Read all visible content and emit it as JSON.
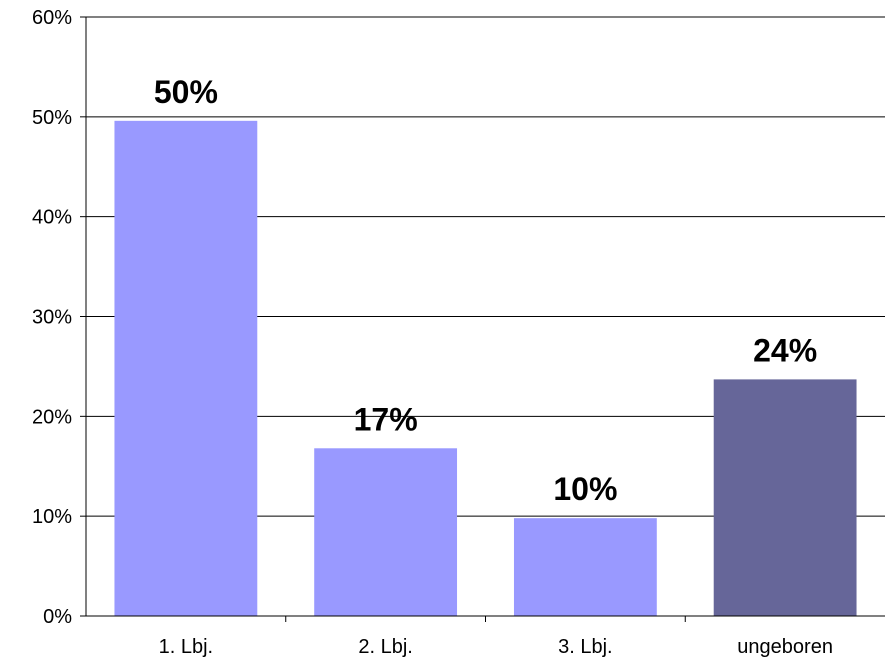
{
  "chart_data": {
    "type": "bar",
    "categories": [
      "1. Lbj.",
      "2. Lbj.",
      "3. Lbj.",
      "ungeboren"
    ],
    "values": [
      49.6,
      16.8,
      9.8,
      23.7
    ],
    "data_labels": [
      "50%",
      "17%",
      "10%",
      "24%"
    ],
    "bar_colors": [
      "#9999ff",
      "#9999ff",
      "#9999ff",
      "#666699"
    ],
    "ylim": [
      0,
      60
    ],
    "yticks": [
      0,
      10,
      20,
      30,
      40,
      50,
      60
    ],
    "ytick_labels": [
      "0%",
      "10%",
      "20%",
      "30%",
      "40%",
      "50%",
      "60%"
    ],
    "title": "",
    "xlabel": "",
    "ylabel": "",
    "grid": true,
    "legend": "none"
  }
}
